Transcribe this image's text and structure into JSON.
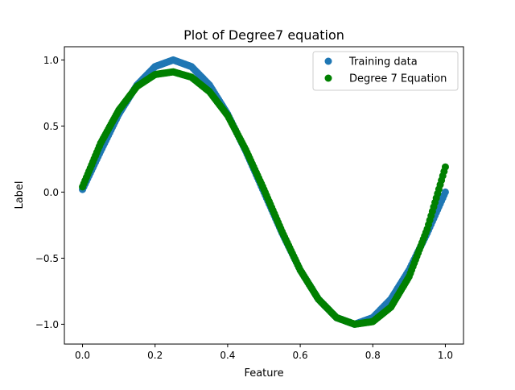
{
  "chart_data": {
    "type": "scatter",
    "title": "Plot of Degree7 equation",
    "xlabel": "Feature",
    "ylabel": "Label",
    "xlim": [
      -0.05,
      1.05
    ],
    "ylim": [
      -1.15,
      1.1
    ],
    "xticks": [
      0.0,
      0.2,
      0.4,
      0.6,
      0.8,
      1.0
    ],
    "xtick_labels": [
      "0.0",
      "0.2",
      "0.4",
      "0.6",
      "0.8",
      "1.0"
    ],
    "yticks": [
      -1.0,
      -0.5,
      0.0,
      0.5,
      1.0
    ],
    "ytick_labels": [
      "−1.0",
      "−0.5",
      "0.0",
      "0.5",
      "1.0"
    ],
    "grid": false,
    "legend_position": "top-right",
    "series": [
      {
        "name": "Training data",
        "color": "#1f77b4",
        "marker": "circle",
        "x": [
          0.0,
          0.05,
          0.1,
          0.15,
          0.2,
          0.25,
          0.3,
          0.35,
          0.4,
          0.45,
          0.5,
          0.55,
          0.6,
          0.65,
          0.7,
          0.75,
          0.8,
          0.85,
          0.9,
          0.95,
          1.0
        ],
        "y": [
          0.02,
          0.31,
          0.59,
          0.81,
          0.95,
          1.0,
          0.95,
          0.81,
          0.59,
          0.31,
          0.0,
          -0.31,
          -0.59,
          -0.81,
          -0.95,
          -1.0,
          -0.95,
          -0.81,
          -0.59,
          -0.31,
          0.0
        ]
      },
      {
        "name": "Degree 7 Equation",
        "color": "#008000",
        "marker": "circle",
        "x": [
          0.0,
          0.05,
          0.1,
          0.15,
          0.2,
          0.25,
          0.3,
          0.35,
          0.4,
          0.45,
          0.5,
          0.55,
          0.6,
          0.65,
          0.7,
          0.75,
          0.8,
          0.85,
          0.9,
          0.95,
          1.0
        ],
        "y": [
          0.04,
          0.37,
          0.62,
          0.8,
          0.89,
          0.91,
          0.87,
          0.76,
          0.58,
          0.32,
          0.02,
          -0.3,
          -0.59,
          -0.81,
          -0.95,
          -1.0,
          -0.98,
          -0.87,
          -0.64,
          -0.28,
          0.19
        ]
      }
    ]
  }
}
